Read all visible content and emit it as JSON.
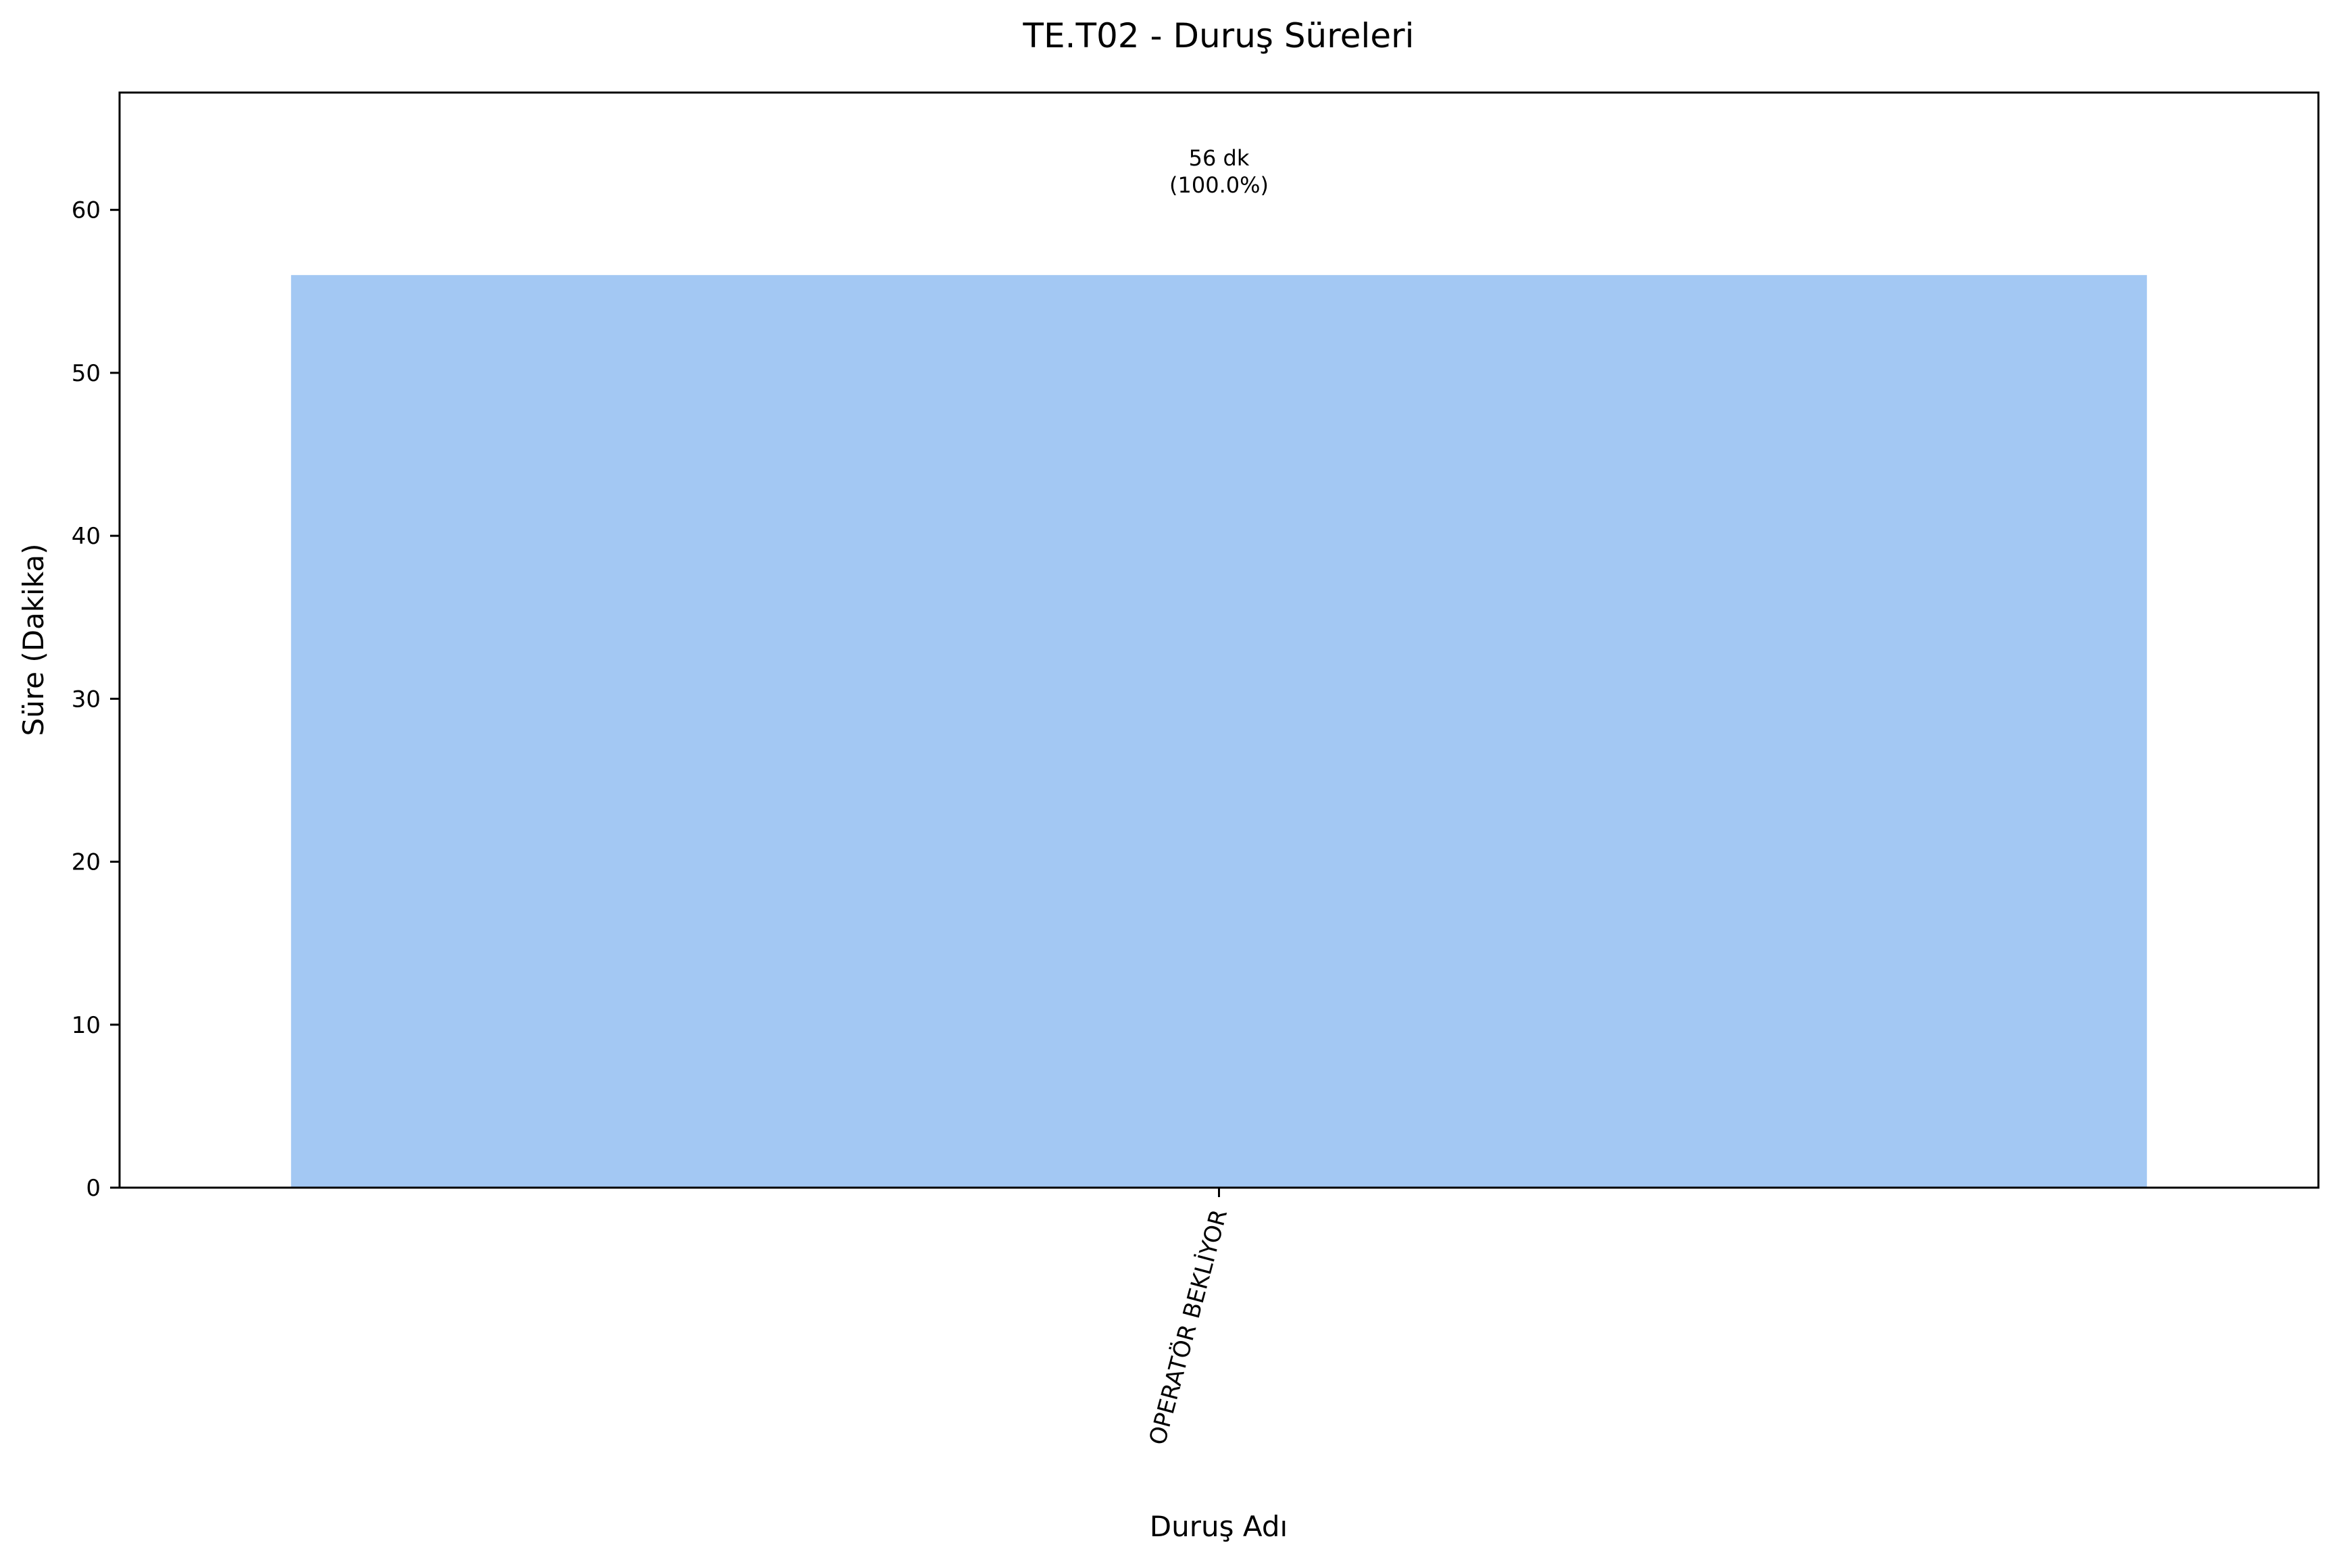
{
  "chart_data": {
    "type": "bar",
    "title": "TE.T02 - Duruş Süreleri",
    "xlabel": "Duruş Adı",
    "ylabel": "Süre (Dakika)",
    "categories": [
      "OPERATÖR BEKLİYOR"
    ],
    "values": [
      56
    ],
    "bar_labels": [
      {
        "value_text": "56 dk",
        "percent_text": "(100.0%)"
      }
    ],
    "ylim": [
      0,
      67.2
    ],
    "yticks": [
      0,
      10,
      20,
      30,
      40,
      50,
      60
    ],
    "grid": false,
    "legend": "none",
    "colors": {
      "bar": "#a3c8f3",
      "axes": "#000000",
      "background": "#ffffff"
    }
  }
}
